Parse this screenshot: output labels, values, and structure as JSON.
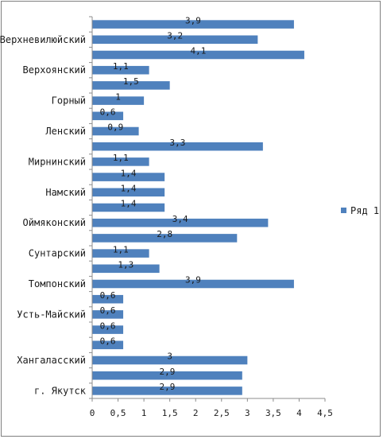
{
  "chart_data": {
    "type": "bar",
    "orientation": "horizontal",
    "categories": [
      "г. Якутск",
      "",
      "Хангаласский",
      "",
      "",
      "Усть-Майский",
      "",
      "Томпонский",
      "",
      "Сунтарский",
      "",
      "Оймяконский",
      "",
      "Намский",
      "",
      "Мирнинский",
      "",
      "Ленский",
      "",
      "Горный",
      "",
      "Верхоянский",
      "",
      "Верхневилюйский",
      ""
    ],
    "series": [
      {
        "name": "Ряд 1",
        "color": "#4f81bd",
        "values": [
          2.9,
          2.9,
          3,
          0.6,
          0.6,
          0.6,
          0.6,
          3.9,
          1.3,
          1.1,
          2.8,
          3.4,
          1.4,
          1.4,
          1.4,
          1.1,
          3.3,
          0.9,
          0.6,
          1,
          1.5,
          1.1,
          4.1,
          3.2,
          3.9
        ],
        "data_labels": [
          "2,9",
          "2,9",
          "3",
          "0,6",
          "0,6",
          "0,6",
          "0,6",
          "3,9",
          "1,3",
          "1,1",
          "2,8",
          "3,4",
          "1,4",
          "1,4",
          "1,4",
          "1,1",
          "3,3",
          "0,9",
          "0,6",
          "1",
          "1,5",
          "1,1",
          "4,1",
          "3,2",
          "3,9"
        ]
      }
    ],
    "xlim": [
      0,
      4.5
    ],
    "x_ticks": [
      0,
      0.5,
      1,
      1.5,
      2,
      2.5,
      3,
      3.5,
      4,
      4.5
    ],
    "x_tick_labels": [
      "0",
      "0,5",
      "1",
      "1,5",
      "2",
      "2,5",
      "3",
      "3,5",
      "4",
      "4,5"
    ],
    "legend_position": "right",
    "grid": false
  }
}
